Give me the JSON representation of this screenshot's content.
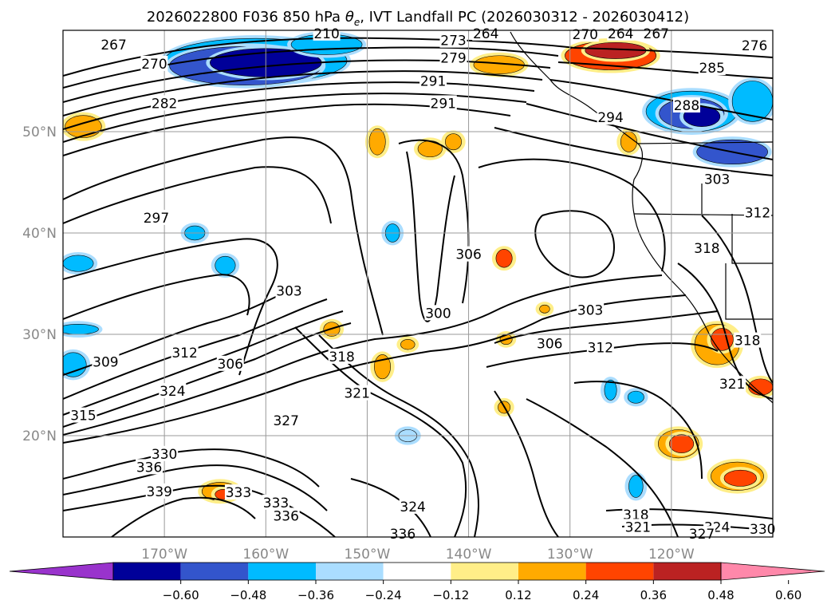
{
  "chart_data": {
    "type": "contour",
    "title": "2026022800 F036 850 hPa θe, IVT Landfall PC (2026030312 - 2026030412)",
    "title_parts": {
      "prefix": "2026022800 F036 850 hPa ",
      "symbol": "θ",
      "subscript": "e",
      "suffix": ", IVT Landfall PC (2026030312 - 2026030412)"
    },
    "lon_range": [
      -180,
      -110
    ],
    "lat_range": [
      10,
      60
    ],
    "x_ticks": [
      {
        "value": -170,
        "label": "170°W"
      },
      {
        "value": -160,
        "label": "160°W"
      },
      {
        "value": -150,
        "label": "150°W"
      },
      {
        "value": -140,
        "label": "140°W"
      },
      {
        "value": -130,
        "label": "130°W"
      },
      {
        "value": -120,
        "label": "120°W"
      }
    ],
    "y_ticks": [
      {
        "value": 20,
        "label": "20°N"
      },
      {
        "value": 30,
        "label": "30°N"
      },
      {
        "value": 40,
        "label": "40°N"
      },
      {
        "value": 50,
        "label": "50°N"
      }
    ],
    "grid": true,
    "contour_labels": [
      {
        "text": "267",
        "lon": -175,
        "lat": 58.6
      },
      {
        "text": "270",
        "lon": -171,
        "lat": 56.7
      },
      {
        "text": "273",
        "lon": -141.5,
        "lat": 59
      },
      {
        "text": "279",
        "lon": -141.5,
        "lat": 57.3
      },
      {
        "text": "282",
        "lon": -170,
        "lat": 52.8
      },
      {
        "text": "291",
        "lon": -143.5,
        "lat": 55
      },
      {
        "text": "291",
        "lon": -142.5,
        "lat": 52.8
      },
      {
        "text": "294",
        "lon": -126,
        "lat": 51.4
      },
      {
        "text": "285",
        "lon": -116,
        "lat": 56.3
      },
      {
        "text": "276",
        "lon": -111.8,
        "lat": 58.5
      },
      {
        "text": "270",
        "lon": -128.5,
        "lat": 59.6
      },
      {
        "text": "264",
        "lon": -125,
        "lat": 59.7
      },
      {
        "text": "267",
        "lon": -121.5,
        "lat": 59.7
      },
      {
        "text": "264",
        "lon": -138.3,
        "lat": 59.7
      },
      {
        "text": "210",
        "lon": -154,
        "lat": 59.7
      },
      {
        "text": "288",
        "lon": -118.5,
        "lat": 52.6
      },
      {
        "text": "303",
        "lon": -115.5,
        "lat": 45.3
      },
      {
        "text": "312",
        "lon": -111.5,
        "lat": 42
      },
      {
        "text": "318",
        "lon": -116.5,
        "lat": 38.5
      },
      {
        "text": "318",
        "lon": -112.5,
        "lat": 29.4
      },
      {
        "text": "321",
        "lon": -114,
        "lat": 25.1
      },
      {
        "text": "297",
        "lon": -170.8,
        "lat": 41.5
      },
      {
        "text": "306",
        "lon": -140,
        "lat": 37.9
      },
      {
        "text": "300",
        "lon": -143,
        "lat": 32.1
      },
      {
        "text": "303",
        "lon": -157.7,
        "lat": 34.3
      },
      {
        "text": "303",
        "lon": -128,
        "lat": 32.4
      },
      {
        "text": "306",
        "lon": -132,
        "lat": 29.1
      },
      {
        "text": "312",
        "lon": -127,
        "lat": 28.7
      },
      {
        "text": "318",
        "lon": -152.5,
        "lat": 27.8
      },
      {
        "text": "309",
        "lon": -175.8,
        "lat": 27.3
      },
      {
        "text": "312",
        "lon": -168,
        "lat": 28.2
      },
      {
        "text": "306",
        "lon": -163.5,
        "lat": 27.1
      },
      {
        "text": "324",
        "lon": -169.2,
        "lat": 24.4
      },
      {
        "text": "321",
        "lon": -151,
        "lat": 24.2
      },
      {
        "text": "315",
        "lon": -178,
        "lat": 22
      },
      {
        "text": "327",
        "lon": -158,
        "lat": 21.5
      },
      {
        "text": "330",
        "lon": -170,
        "lat": 18.2
      },
      {
        "text": "336",
        "lon": -171.5,
        "lat": 16.9
      },
      {
        "text": "339",
        "lon": -170.5,
        "lat": 14.5
      },
      {
        "text": "333",
        "lon": -162.7,
        "lat": 14.4
      },
      {
        "text": "333",
        "lon": -159,
        "lat": 13.4
      },
      {
        "text": "336",
        "lon": -158,
        "lat": 12.1
      },
      {
        "text": "324",
        "lon": -145.5,
        "lat": 13
      },
      {
        "text": "336",
        "lon": -146.5,
        "lat": 10.3
      },
      {
        "text": "318",
        "lon": -123.5,
        "lat": 12.2
      },
      {
        "text": "321",
        "lon": -123.3,
        "lat": 11
      },
      {
        "text": "324",
        "lon": -115.5,
        "lat": 11
      },
      {
        "text": "330",
        "lon": -111,
        "lat": 10.8
      },
      {
        "text": "327",
        "lon": -117,
        "lat": 10.3
      }
    ],
    "colorbar": {
      "ticks": [
        "−0.60",
        "−0.48",
        "−0.36",
        "−0.24",
        "−0.12",
        "0.12",
        "0.24",
        "0.36",
        "0.48",
        "0.60"
      ],
      "bins": [
        {
          "range": [
            -0.72,
            -0.6
          ],
          "color": "#9933CC",
          "extend": "min"
        },
        {
          "range": [
            -0.6,
            -0.48
          ],
          "color": "#000099"
        },
        {
          "range": [
            -0.48,
            -0.36
          ],
          "color": "#3355CC"
        },
        {
          "range": [
            -0.36,
            -0.24
          ],
          "color": "#00BBFF"
        },
        {
          "range": [
            -0.24,
            -0.12
          ],
          "color": "#AADDFF"
        },
        {
          "range": [
            -0.12,
            0.12
          ],
          "color": "#FFFFFF"
        },
        {
          "range": [
            0.12,
            0.24
          ],
          "color": "#FFEE88"
        },
        {
          "range": [
            0.24,
            0.36
          ],
          "color": "#FFAA00"
        },
        {
          "range": [
            0.36,
            0.48
          ],
          "color": "#FF4400"
        },
        {
          "range": [
            0.48,
            0.6
          ],
          "color": "#BB2222"
        },
        {
          "range": [
            0.6,
            0.72
          ],
          "color": "#FF88AA",
          "extend": "max"
        }
      ]
    },
    "shaded_regions": [
      {
        "lon": -161,
        "lat": 57.0,
        "rlon": 9.0,
        "rlat": 2.2,
        "level": -0.36
      },
      {
        "lon": -162,
        "lat": 56.5,
        "rlon": 7.5,
        "rlat": 1.9,
        "level": -0.48
      },
      {
        "lon": -160,
        "lat": 56.8,
        "rlon": 5.5,
        "rlat": 1.4,
        "level": -0.6
      },
      {
        "lon": -154,
        "lat": 58.6,
        "rlon": 3.5,
        "rlat": 1.0,
        "level": -0.36
      },
      {
        "lon": -118,
        "lat": 52.0,
        "rlon": 4.5,
        "rlat": 2.0,
        "level": -0.36
      },
      {
        "lon": -118,
        "lat": 51.8,
        "rlon": 3.2,
        "rlat": 1.5,
        "level": -0.48
      },
      {
        "lon": -117,
        "lat": 51.5,
        "rlon": 1.8,
        "rlat": 1.0,
        "level": -0.6
      },
      {
        "lon": -114,
        "lat": 48.0,
        "rlon": 3.5,
        "rlat": 1.2,
        "level": -0.48
      },
      {
        "lon": -112,
        "lat": 53.0,
        "rlon": 2.0,
        "rlat": 2.0,
        "level": -0.36
      },
      {
        "lon": -126,
        "lat": 57.5,
        "rlon": 4.5,
        "rlat": 1.4,
        "level": 0.36
      },
      {
        "lon": -125.5,
        "lat": 58.0,
        "rlon": 3.0,
        "rlat": 0.8,
        "level": 0.48
      },
      {
        "lon": -137,
        "lat": 56.6,
        "rlon": 2.5,
        "rlat": 0.9,
        "level": 0.24
      },
      {
        "lon": -178,
        "lat": 50.5,
        "rlon": 1.8,
        "rlat": 1.1,
        "level": 0.24
      },
      {
        "lon": -149,
        "lat": 49.0,
        "rlon": 0.8,
        "rlat": 1.3,
        "level": 0.24
      },
      {
        "lon": -143.8,
        "lat": 48.3,
        "rlon": 1.2,
        "rlat": 0.8,
        "level": 0.24
      },
      {
        "lon": -141.5,
        "lat": 49.0,
        "rlon": 0.8,
        "rlat": 0.8,
        "level": 0.24
      },
      {
        "lon": -124.2,
        "lat": 49.0,
        "rlon": 0.8,
        "rlat": 1.0,
        "level": 0.24
      },
      {
        "lon": -178.5,
        "lat": 37.0,
        "rlon": 1.5,
        "rlat": 0.8,
        "level": -0.36
      },
      {
        "lon": -164,
        "lat": 36.8,
        "rlon": 1.0,
        "rlat": 0.9,
        "level": -0.36
      },
      {
        "lon": -178.5,
        "lat": 30.5,
        "rlon": 2.0,
        "rlat": 0.5,
        "level": -0.36
      },
      {
        "lon": -179.0,
        "lat": 27.0,
        "rlon": 1.3,
        "rlat": 1.2,
        "level": -0.36
      },
      {
        "lon": -167,
        "lat": 40.0,
        "rlon": 1.0,
        "rlat": 0.7,
        "level": -0.36
      },
      {
        "lon": -147.5,
        "lat": 40.0,
        "rlon": 0.7,
        "rlat": 0.9,
        "level": -0.36
      },
      {
        "lon": -136.5,
        "lat": 37.5,
        "rlon": 0.8,
        "rlat": 0.9,
        "level": 0.36
      },
      {
        "lon": -153.5,
        "lat": 30.5,
        "rlon": 0.8,
        "rlat": 0.7,
        "level": 0.24
      },
      {
        "lon": -148.5,
        "lat": 26.8,
        "rlon": 0.8,
        "rlat": 1.2,
        "level": 0.24
      },
      {
        "lon": -146.0,
        "lat": 29.0,
        "rlon": 0.7,
        "rlat": 0.5,
        "level": 0.24
      },
      {
        "lon": -115.5,
        "lat": 29.0,
        "rlon": 2.2,
        "rlat": 2.0,
        "level": 0.24
      },
      {
        "lon": -115.0,
        "lat": 29.5,
        "rlon": 1.1,
        "rlat": 1.1,
        "level": 0.36
      },
      {
        "lon": -111.2,
        "lat": 24.8,
        "rlon": 1.2,
        "rlat": 0.8,
        "level": 0.36
      },
      {
        "lon": -119.3,
        "lat": 19.2,
        "rlon": 2.0,
        "rlat": 1.4,
        "level": 0.24
      },
      {
        "lon": -119.0,
        "lat": 19.2,
        "rlon": 1.2,
        "rlat": 0.9,
        "level": 0.36
      },
      {
        "lon": -113.5,
        "lat": 16.0,
        "rlon": 2.6,
        "rlat": 1.4,
        "level": 0.24
      },
      {
        "lon": -113.2,
        "lat": 15.8,
        "rlon": 1.6,
        "rlat": 0.8,
        "level": 0.36
      },
      {
        "lon": -164.5,
        "lat": 14.5,
        "rlon": 1.8,
        "rlat": 0.9,
        "level": 0.24
      },
      {
        "lon": -164.2,
        "lat": 14.2,
        "rlon": 0.8,
        "rlat": 0.5,
        "level": 0.36
      },
      {
        "lon": -126.0,
        "lat": 24.5,
        "rlon": 0.6,
        "rlat": 1.0,
        "level": -0.36
      },
      {
        "lon": -123.5,
        "lat": 23.8,
        "rlon": 0.8,
        "rlat": 0.6,
        "level": -0.36
      },
      {
        "lon": -123.5,
        "lat": 15.0,
        "rlon": 0.7,
        "rlat": 1.1,
        "level": -0.36
      },
      {
        "lon": -136.5,
        "lat": 22.8,
        "rlon": 0.6,
        "rlat": 0.6,
        "level": 0.24
      },
      {
        "lon": -146.0,
        "lat": 20.0,
        "rlon": 0.9,
        "rlat": 0.6,
        "level": -0.24
      },
      {
        "lon": -136.3,
        "lat": 29.5,
        "rlon": 0.6,
        "rlat": 0.5,
        "level": 0.24
      },
      {
        "lon": -132.5,
        "lat": 32.5,
        "rlon": 0.5,
        "rlat": 0.4,
        "level": 0.24
      }
    ]
  }
}
